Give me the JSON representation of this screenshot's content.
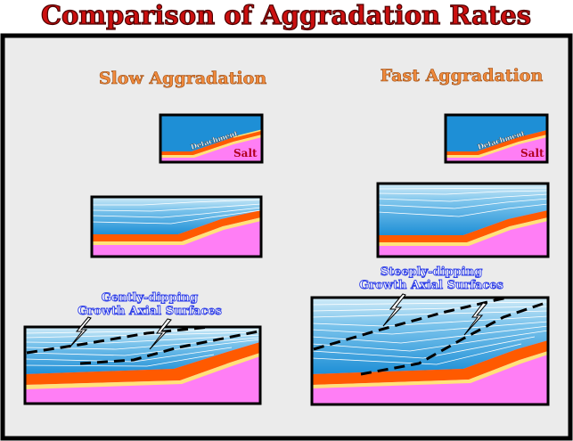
{
  "title": "Comparison of Aggradation Rates",
  "columns": {
    "slow": {
      "heading": "Slow Aggradation",
      "annotation_line1": "Gently-dipping",
      "annotation_line2": "Growth Axial Surfaces"
    },
    "fast": {
      "heading": "Fast Aggradation",
      "annotation_line1": "Steeply-dipping",
      "annotation_line2": "Growth Axial Surfaces"
    }
  },
  "labels": {
    "detachment": "Detachment",
    "salt": "Salt"
  },
  "colors": {
    "title_red": "#cc1010",
    "heading_orange": "#f08a3c",
    "annotation_blue": "#2e3ee8",
    "panel_background": "#ebebeb",
    "sea_blue": "#1e8fd6",
    "sea_light": "#d2ecf8",
    "orange_layer": "#ff5a00",
    "yellow_layer": "#ffe27a",
    "salt_pink": "#ff7ef5",
    "salt_label": "#b00020"
  }
}
